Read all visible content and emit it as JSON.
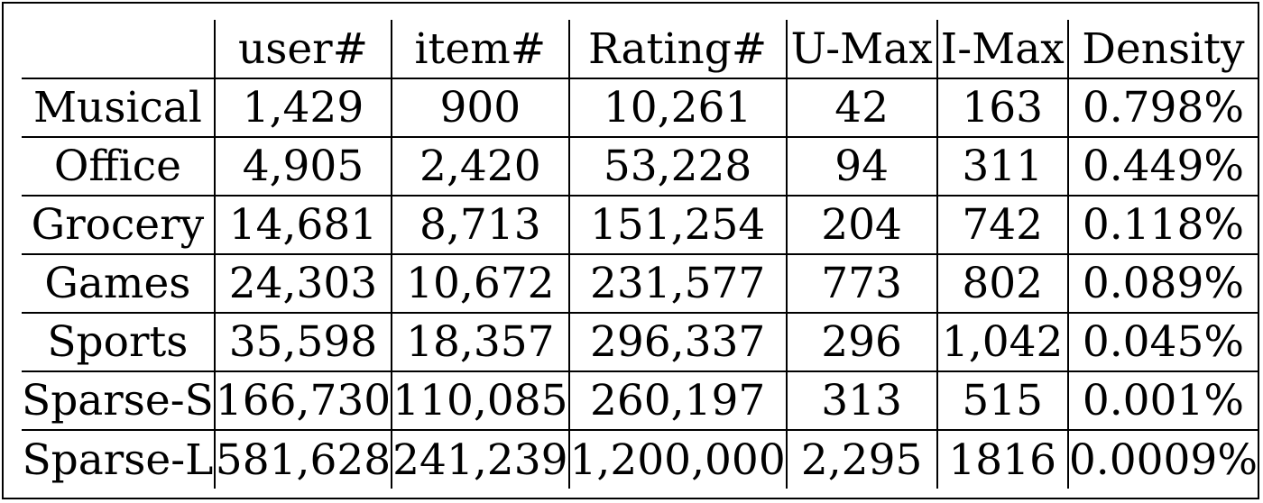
{
  "table": {
    "columns": [
      "",
      "user#",
      "item#",
      "Rating#",
      "U-Max",
      "I-Max",
      "Density"
    ],
    "rows": [
      {
        "name": "Musical",
        "values": [
          "1,429",
          "900",
          "10,261",
          "42",
          "163",
          "0.798%"
        ]
      },
      {
        "name": "Office",
        "values": [
          "4,905",
          "2,420",
          "53,228",
          "94",
          "311",
          "0.449%"
        ]
      },
      {
        "name": "Grocery",
        "values": [
          "14,681",
          "8,713",
          "151,254",
          "204",
          "742",
          "0.118%"
        ]
      },
      {
        "name": "Games",
        "values": [
          "24,303",
          "10,672",
          "231,577",
          "773",
          "802",
          "0.089%"
        ]
      },
      {
        "name": "Sports",
        "values": [
          "35,598",
          "18,357",
          "296,337",
          "296",
          "1,042",
          "0.045%"
        ]
      },
      {
        "name": "Sparse-S",
        "values": [
          "166,730",
          "110,085",
          "260,197",
          "313",
          "515",
          "0.001%"
        ]
      },
      {
        "name": "Sparse-L",
        "values": [
          "581,628",
          "241,239",
          "1,200,000",
          "2,295",
          "1816",
          "0.0009%"
        ]
      }
    ]
  }
}
